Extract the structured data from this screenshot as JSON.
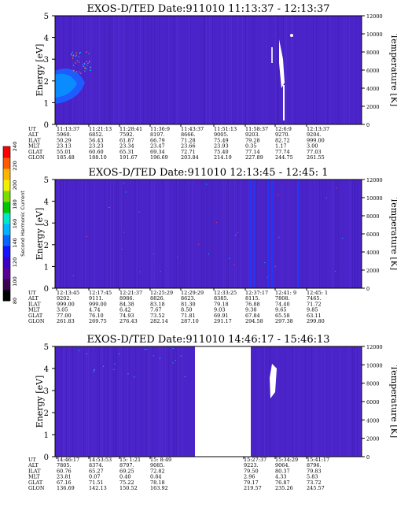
{
  "colors": {
    "background": "#4a24c8",
    "gap": "#ffffff",
    "colorbar": [
      "#000000",
      "#3b0054",
      "#5a0096",
      "#3a00c8",
      "#1414ff",
      "#0a64ff",
      "#00b4ff",
      "#00e6c8",
      "#00c800",
      "#7ade00",
      "#f0f000",
      "#ffb400",
      "#ff5a00",
      "#ff0000"
    ]
  },
  "colorbar": {
    "label": "Second Harmonic Current",
    "ticks": [
      "80",
      "100",
      "120",
      "140",
      "160",
      "180",
      "200",
      "220",
      "240"
    ]
  },
  "panels": [
    {
      "title": "EXOS-D/TED   Date:911010  11:13:37 - 12:13:37",
      "ylabel": "Energy [eV]",
      "y2label": "Temperature [K]",
      "yticks": [
        "5",
        "4",
        "3",
        "2",
        "1",
        "0"
      ],
      "y2ticks": [
        "12000",
        "10000",
        "8000",
        "6000",
        "4000",
        "2000",
        "0"
      ],
      "rows": [
        {
          "name": "UT",
          "vals": [
            "11:13:37",
            "11:21:13",
            "11:28:41",
            "11:36:9",
            "11:43:37",
            "11:51:13",
            "11:58:37",
            "12:6:9",
            "12:13:37"
          ]
        },
        {
          "name": "ALT",
          "vals": [
            "5960.",
            "6852.",
            "7592.",
            "8197.",
            "8666.",
            "9005.",
            "9203.",
            "9270.",
            "9204."
          ]
        },
        {
          "name": "ILAT",
          "vals": [
            "50.29",
            "56.43",
            "61.87",
            "66.79",
            "71.28",
            "75.49",
            "79.28",
            "82.72",
            "999.00"
          ]
        },
        {
          "name": "MLT",
          "vals": [
            "23.13",
            "23.23",
            "23.34",
            "23.47",
            "23.66",
            "23.93",
            "0.35",
            "1.17",
            "3.00"
          ]
        },
        {
          "name": "GLAT",
          "vals": [
            "55.01",
            "60.60",
            "65.31",
            "69.34",
            "72.71",
            "75.40",
            "77.14",
            "77.74",
            "77.03"
          ]
        },
        {
          "name": "GLON",
          "vals": [
            "185.48",
            "188.10",
            "191.67",
            "196.69",
            "203.84",
            "214.19",
            "227.89",
            "244.75",
            "261.55"
          ]
        }
      ]
    },
    {
      "title": "EXOS-D/TED   Date:911010  12:13:45 - 12:45: 1",
      "ylabel": "Energy [eV]",
      "y2label": "Temperature [K]",
      "yticks": [
        "5",
        "4",
        "3",
        "2",
        "1",
        "0"
      ],
      "y2ticks": [
        "12000",
        "10000",
        "8000",
        "6000",
        "4000",
        "2000",
        "0"
      ],
      "rows": [
        {
          "name": "UT",
          "vals": [
            "12:13:45",
            "12:17:45",
            "12:21:37",
            "12:25:29",
            "12:29:29",
            "12:33:25",
            "12:37:17",
            "12:41: 9",
            "12:45: 1"
          ]
        },
        {
          "name": "ALT",
          "vals": [
            "9202.",
            "9111.",
            "8986.",
            "8826.",
            "8623.",
            "8385.",
            "8115.",
            "7808.",
            "7465."
          ]
        },
        {
          "name": "ILAT",
          "vals": [
            "999.00",
            "999.00",
            "84.38",
            "83.18",
            "81.30",
            "79.18",
            "76.88",
            "74.40",
            "71.72"
          ]
        },
        {
          "name": "MLT",
          "vals": [
            "3.05",
            "4.74",
            "6.42",
            "7.67",
            "8.50",
            "9.03",
            "9.38",
            "9.65",
            "9.85"
          ]
        },
        {
          "name": "GLAT",
          "vals": [
            "77.00",
            "76.10",
            "74.93",
            "73.52",
            "71.81",
            "69.91",
            "67.84",
            "65.58",
            "63.11"
          ]
        },
        {
          "name": "GLON",
          "vals": [
            "261.83",
            "269.75",
            "276.43",
            "282.14",
            "287.10",
            "291.17",
            "294.58",
            "297.38",
            "299.80"
          ]
        }
      ]
    },
    {
      "title": "EXOS-D/TED   Date:911010  14:46:17 - 15:46:13",
      "ylabel": "Energy [eV]",
      "y2label": "Temperature [K]",
      "yticks": [
        "5",
        "4",
        "3",
        "2",
        "1",
        "0"
      ],
      "y2ticks": [
        "12000",
        "10000",
        "8000",
        "6000",
        "4000",
        "2000",
        "0"
      ],
      "rows": [
        {
          "name": "UT",
          "vals": [
            "14:46:17",
            "14:53:53",
            "15: 1:21",
            "15: 8:49",
            "",
            "15:27:37",
            "15:34:29",
            "15:41:17"
          ]
        },
        {
          "name": "ALT",
          "vals": [
            "7805.",
            "8374.",
            "8797.",
            "9085.",
            "",
            "9223.",
            "9064.",
            "8796."
          ]
        },
        {
          "name": "ILAT",
          "vals": [
            "60.76",
            "65.27",
            "69.25",
            "72.82",
            "",
            "79.50",
            "80.37",
            "79.83"
          ]
        },
        {
          "name": "MLT",
          "vals": [
            "23.81",
            "0.07",
            "0.40",
            "0.84",
            "",
            "2.96",
            "4.33",
            "5.83"
          ]
        },
        {
          "name": "GLAT",
          "vals": [
            "67.16",
            "71.51",
            "75.22",
            "78.18",
            "",
            "79.17",
            "76.87",
            "73.72"
          ]
        },
        {
          "name": "GLON",
          "vals": [
            "136.69",
            "142.13",
            "150.52",
            "163.92",
            "",
            "219.57",
            "235.26",
            "245.57"
          ]
        }
      ]
    }
  ],
  "chart_data": [
    {
      "type": "heatmap",
      "title": "EXOS-D/TED   Date:911010  11:13:37 - 12:13:37",
      "ylabel": "Energy [eV]",
      "y2label": "Temperature [K]",
      "ylim": [
        0,
        5
      ],
      "y2lim": [
        0,
        12000
      ],
      "x": [
        "11:13:37",
        "11:21:13",
        "11:28:41",
        "11:36:9",
        "11:43:37",
        "11:51:13",
        "11:58:37",
        "12:6:9",
        "12:13:37"
      ]
    },
    {
      "type": "heatmap",
      "title": "EXOS-D/TED   Date:911010  12:13:45 - 12:45: 1",
      "ylabel": "Energy [eV]",
      "y2label": "Temperature [K]",
      "ylim": [
        0,
        5
      ],
      "y2lim": [
        0,
        12000
      ],
      "x": [
        "12:13:45",
        "12:17:45",
        "12:21:37",
        "12:25:29",
        "12:29:29",
        "12:33:25",
        "12:37:17",
        "12:41: 9",
        "12:45: 1"
      ]
    },
    {
      "type": "heatmap",
      "title": "EXOS-D/TED   Date:911010  14:46:17 - 15:46:13",
      "ylabel": "Energy [eV]",
      "y2label": "Temperature [K]",
      "ylim": [
        0,
        5
      ],
      "y2lim": [
        0,
        12000
      ],
      "x": [
        "14:46:17",
        "14:53:53",
        "15: 1:21",
        "15: 8:49",
        "15:27:37",
        "15:34:29",
        "15:41:17"
      ]
    }
  ]
}
